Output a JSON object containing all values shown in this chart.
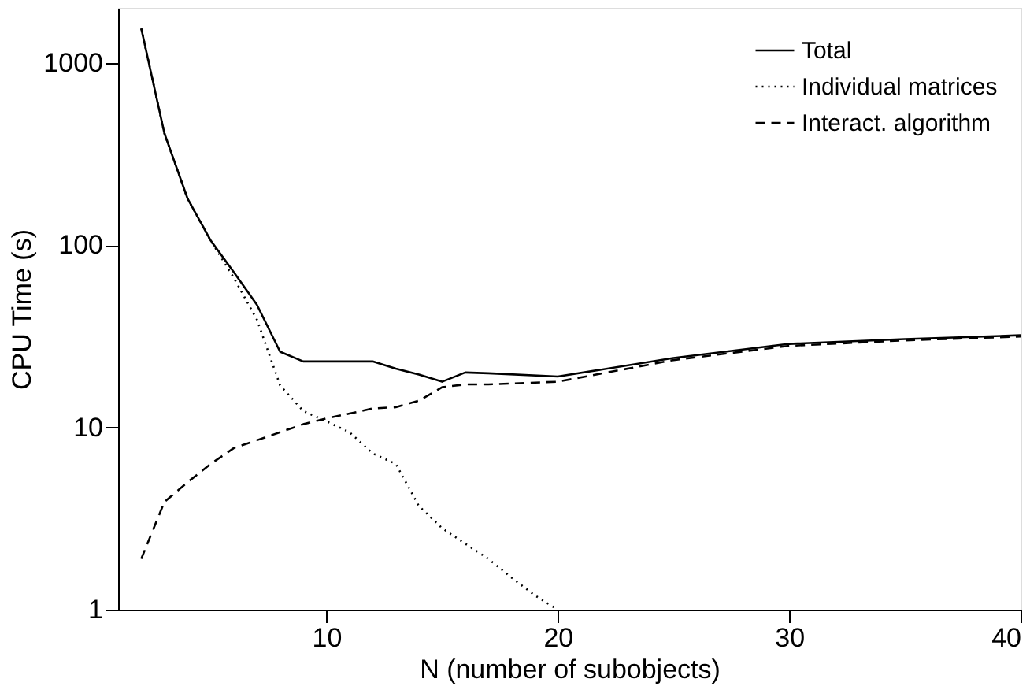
{
  "chart_data": {
    "type": "line",
    "xlabel": "N (number of subobjects)",
    "ylabel": "CPU Time (s)",
    "xlim": [
      1,
      40
    ],
    "ylim": [
      1,
      2000
    ],
    "log": "y",
    "xticks": [
      10,
      20,
      30,
      40
    ],
    "yticks": [
      1,
      10,
      100,
      1000
    ],
    "grid": false,
    "legend": "top right",
    "marker": "none",
    "series": [
      {
        "name": "Total",
        "color": "#000000",
        "line_style": "solid",
        "x": [
          2,
          3,
          4,
          5,
          6,
          7,
          8,
          9,
          10,
          11,
          12,
          13,
          14,
          15,
          16,
          17,
          20,
          25,
          30,
          35,
          40
        ],
        "values": [
          1540,
          410,
          180,
          106,
          71,
          47,
          26,
          23,
          23,
          23,
          23,
          21,
          19.5,
          17.8,
          20,
          19.8,
          19,
          24,
          28.7,
          30.5,
          32
        ]
      },
      {
        "name": "Individual matrices",
        "color": "#000000",
        "line_style": "dotted",
        "x": [
          2,
          3,
          4,
          5,
          6,
          7,
          8,
          9,
          10,
          11,
          12,
          13,
          14,
          15,
          16,
          17,
          18,
          19,
          20
        ],
        "values": [
          1540,
          410,
          180,
          106,
          66,
          39,
          17,
          12.3,
          10.8,
          9.4,
          7.2,
          6.3,
          3.7,
          2.8,
          2.3,
          1.9,
          1.5,
          1.2,
          1.0
        ]
      },
      {
        "name": "Interact. algorithm",
        "color": "#000000",
        "line_style": "dashed",
        "x": [
          2,
          3,
          4,
          5,
          6,
          7,
          8,
          9,
          10,
          11,
          12,
          13,
          14,
          15,
          16,
          17,
          20,
          25,
          30,
          35,
          40
        ],
        "values": [
          1.9,
          3.9,
          5,
          6.3,
          7.7,
          8.5,
          9.4,
          10.4,
          11.2,
          11.9,
          12.7,
          12.9,
          14,
          16.6,
          17.2,
          17.2,
          17.8,
          23.4,
          28,
          30,
          31.5
        ]
      }
    ]
  }
}
